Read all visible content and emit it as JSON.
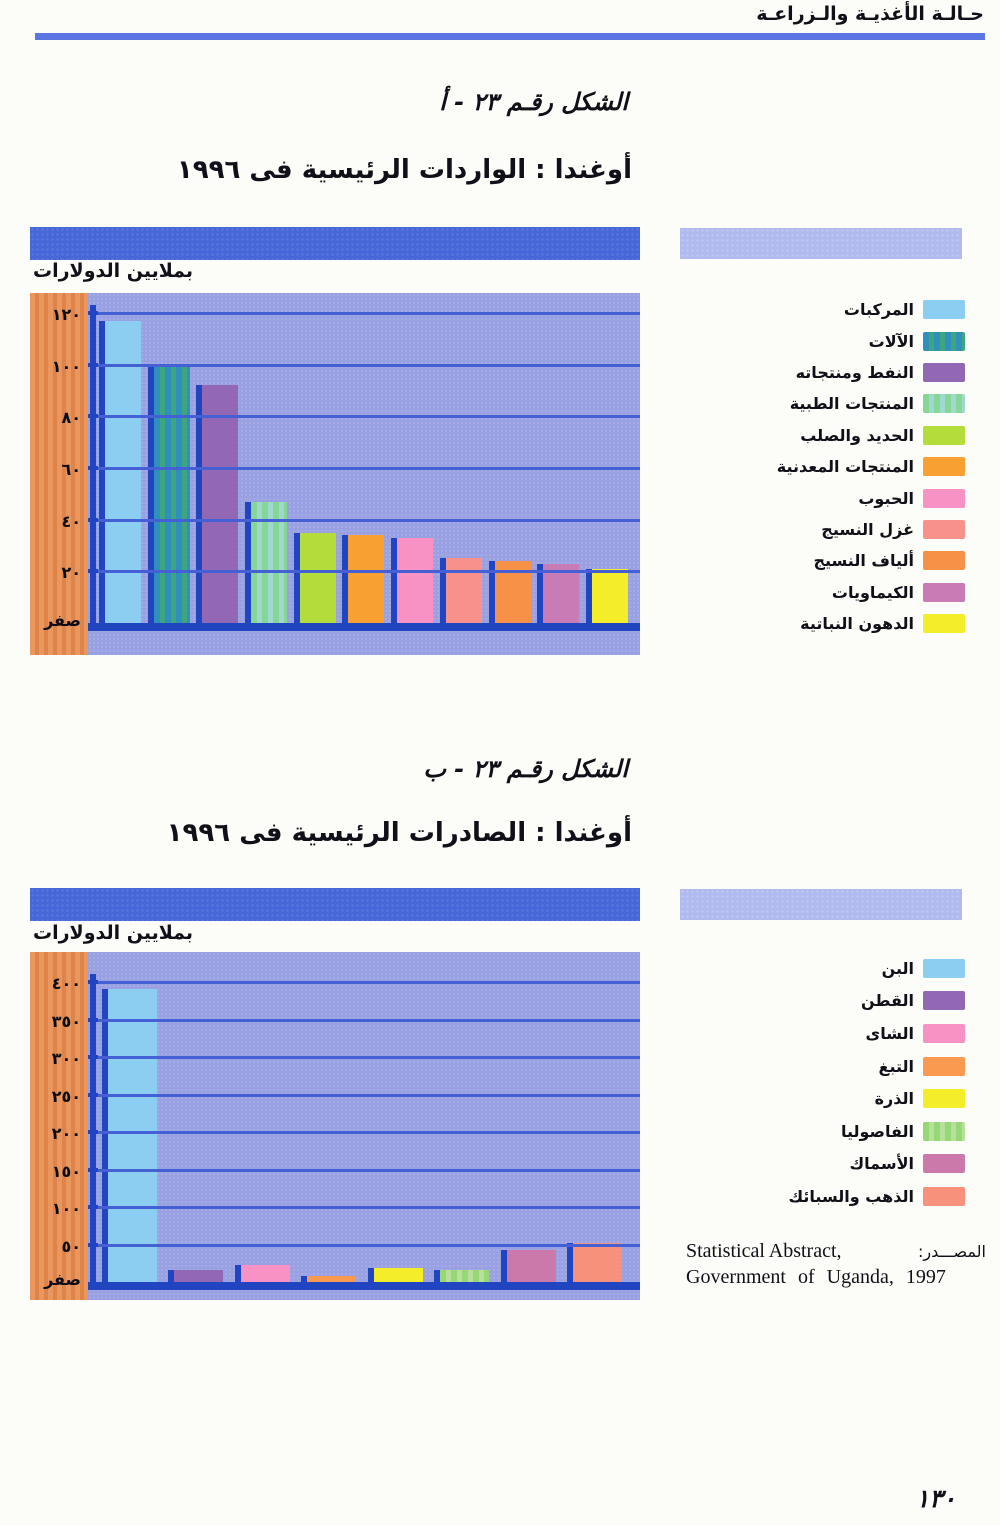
{
  "page": {
    "header": "حـالـة الأغذيـة والـزراعـة",
    "page_number": "١٣٠"
  },
  "source": {
    "label_ar": "المصـــدر:",
    "text_line1": "Statistical Abstract,",
    "text_line2": "Government of Uganda, 1997"
  },
  "colors": {
    "banner_blue": "#4767d8",
    "banner_light": "#b0baee",
    "plot_background": "#9aa1e3",
    "axis_band_orange": "#e9975f",
    "axis_line_blue": "#2145c0",
    "gridline_blue": "#4560d4",
    "header_rule_blue": "#5b76e3"
  },
  "chart_data": [
    {
      "type": "bar",
      "figure_caption": "الشكل رقـم ٢٣ - أ",
      "title": "أوغندا : الواردات الرئيسية فى ١٩٩٦",
      "ylabel": "بملايين الدولارات",
      "ylim": [
        0,
        130
      ],
      "grid": true,
      "legend_position": "right",
      "yticks": [
        {
          "value": 120,
          "label": "١٢٠"
        },
        {
          "value": 100,
          "label": "١٠٠"
        },
        {
          "value": 80,
          "label": "٨٠"
        },
        {
          "value": 60,
          "label": "٦٠"
        },
        {
          "value": 40,
          "label": "٤٠"
        },
        {
          "value": 20,
          "label": "٢٠"
        },
        {
          "value": 0,
          "label": "صفر"
        }
      ],
      "categories": [
        "المركبات",
        "الآلات",
        "النفط ومنتجاته",
        "المنتجات الطبية",
        "الحديد والصلب",
        "المنتجات المعدنية",
        "الحبوب",
        "غزل النسيج",
        "ألياف النسيج",
        "الكيماويات",
        "الدهون النباتية"
      ],
      "values": [
        117,
        99,
        92,
        47,
        35,
        34,
        33,
        25,
        24,
        23,
        21
      ],
      "colors": [
        "#8ccdf2",
        "#3090bd",
        "#9267b4",
        "#86d795",
        "#b4dd3c",
        "#f9a033",
        "#f891c4",
        "#f8908c",
        "#f89148",
        "#c97bb5",
        "#f4ee2a"
      ],
      "stripes": [
        null,
        "#3fa57f",
        null,
        "#9fd8cf",
        null,
        null,
        null,
        null,
        null,
        null,
        null
      ]
    },
    {
      "type": "bar",
      "figure_caption": "الشكل رقـم ٢٣ - ب",
      "title": "أوغندا : الصادرات الرئيسية فى ١٩٩٦",
      "ylabel": "بملايين الدولارات",
      "ylim": [
        0,
        430
      ],
      "grid": true,
      "legend_position": "right",
      "yticks": [
        {
          "value": 400,
          "label": "٤٠٠"
        },
        {
          "value": 350,
          "label": "٣٥٠"
        },
        {
          "value": 300,
          "label": "٣٠٠"
        },
        {
          "value": 250,
          "label": "٢٥٠"
        },
        {
          "value": 200,
          "label": "٢٠٠"
        },
        {
          "value": 150,
          "label": "١٥٠"
        },
        {
          "value": 100,
          "label": "١٠٠"
        },
        {
          "value": 50,
          "label": "٥٠"
        },
        {
          "value": 0,
          "label": "صفر"
        }
      ],
      "categories": [
        "البن",
        "القطن",
        "الشاى",
        "التبغ",
        "الذرة",
        "الفاصوليا",
        "الأسماك",
        "الذهب والسبائك"
      ],
      "values": [
        390,
        16,
        22,
        8,
        18,
        16,
        42,
        52
      ],
      "colors": [
        "#8ccdf2",
        "#9267b4",
        "#f891c4",
        "#f99a50",
        "#f4ee2a",
        "#97d876",
        "#cb79ab",
        "#f8917c"
      ],
      "stripes": [
        null,
        null,
        null,
        null,
        null,
        "#b9e09a",
        null,
        null
      ]
    }
  ]
}
